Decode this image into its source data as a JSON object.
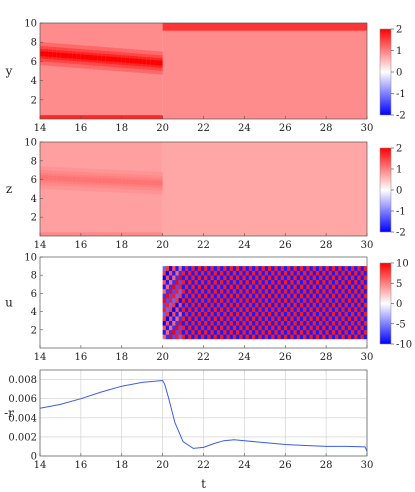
{
  "chart_data": [
    {
      "type": "heatmap",
      "ylabel": "y",
      "xlim": [
        14,
        30
      ],
      "ylim": [
        0,
        10
      ],
      "xticks": [
        14,
        16,
        18,
        20,
        22,
        24,
        26,
        28,
        30
      ],
      "yticks": [
        2,
        4,
        6,
        8,
        10
      ],
      "colorbar": {
        "min": -2,
        "max": 2,
        "ticks": [
          2,
          1,
          0,
          -1,
          -2
        ],
        "colormap": "blue-white-red"
      },
      "regions": [
        {
          "x_range": [
            14,
            20
          ],
          "description_value": 0.9,
          "band_center_y": [
            6.8,
            5.8
          ],
          "band_value": 2.0
        },
        {
          "x_range": [
            20,
            30
          ],
          "value": 0.9,
          "top_band_value": 1.6
        }
      ]
    },
    {
      "type": "heatmap",
      "ylabel": "z",
      "xlim": [
        14,
        30
      ],
      "ylim": [
        0,
        10
      ],
      "xticks": [
        14,
        16,
        18,
        20,
        22,
        24,
        26,
        28,
        30
      ],
      "yticks": [
        2,
        4,
        6,
        8,
        10
      ],
      "colorbar": {
        "min": -2,
        "max": 2,
        "ticks": [
          2,
          1,
          0,
          -1,
          -2
        ],
        "colormap": "blue-white-red"
      },
      "regions": [
        {
          "x_range": [
            14,
            20
          ],
          "value": 0.75,
          "band_center_y": [
            6.2,
            5.6
          ],
          "band_value": 1.1
        },
        {
          "x_range": [
            20,
            30
          ],
          "value": 0.7
        }
      ]
    },
    {
      "type": "heatmap",
      "ylabel": "u",
      "xlim": [
        14,
        30
      ],
      "ylim": [
        0,
        10
      ],
      "xticks": [
        14,
        16,
        18,
        20,
        22,
        24,
        26,
        28,
        30
      ],
      "yticks": [
        2,
        4,
        6,
        8,
        10
      ],
      "colorbar": {
        "min": -10,
        "max": 10,
        "ticks": [
          10,
          5,
          0,
          -5,
          -10
        ],
        "colormap": "blue-white-red"
      },
      "regions": [
        {
          "x_range": [
            14,
            20
          ],
          "value": 0
        },
        {
          "x_range": [
            20,
            30
          ],
          "y_range": [
            1,
            9
          ],
          "pattern": "checkerboard",
          "value": 10
        }
      ]
    },
    {
      "type": "line",
      "xlabel": "t",
      "ylabel": "-r",
      "xlim": [
        14,
        30
      ],
      "ylim": [
        0,
        0.009
      ],
      "xticks": [
        14,
        16,
        18,
        20,
        22,
        24,
        26,
        28,
        30
      ],
      "yticks": [
        0,
        0.002,
        0.004,
        0.006,
        0.008
      ],
      "ytick_labels": [
        "0",
        "0.002",
        "0.004",
        "0.006",
        "0.008"
      ],
      "grid": true,
      "series": [
        {
          "color": "#3a5ce8",
          "x": [
            14,
            15,
            16,
            17,
            18,
            19,
            20,
            20.1,
            20.3,
            20.6,
            21,
            21.5,
            22,
            22.5,
            23,
            23.5,
            24,
            25,
            26,
            27,
            28,
            29,
            29.9,
            30
          ],
          "y": [
            0.005,
            0.0054,
            0.006,
            0.0067,
            0.0073,
            0.0077,
            0.0079,
            0.0075,
            0.006,
            0.0035,
            0.0015,
            0.0008,
            0.0009,
            0.0013,
            0.0016,
            0.0017,
            0.0016,
            0.0014,
            0.0012,
            0.0011,
            0.001,
            0.001,
            0.00095,
            0.0005
          ]
        }
      ]
    }
  ]
}
